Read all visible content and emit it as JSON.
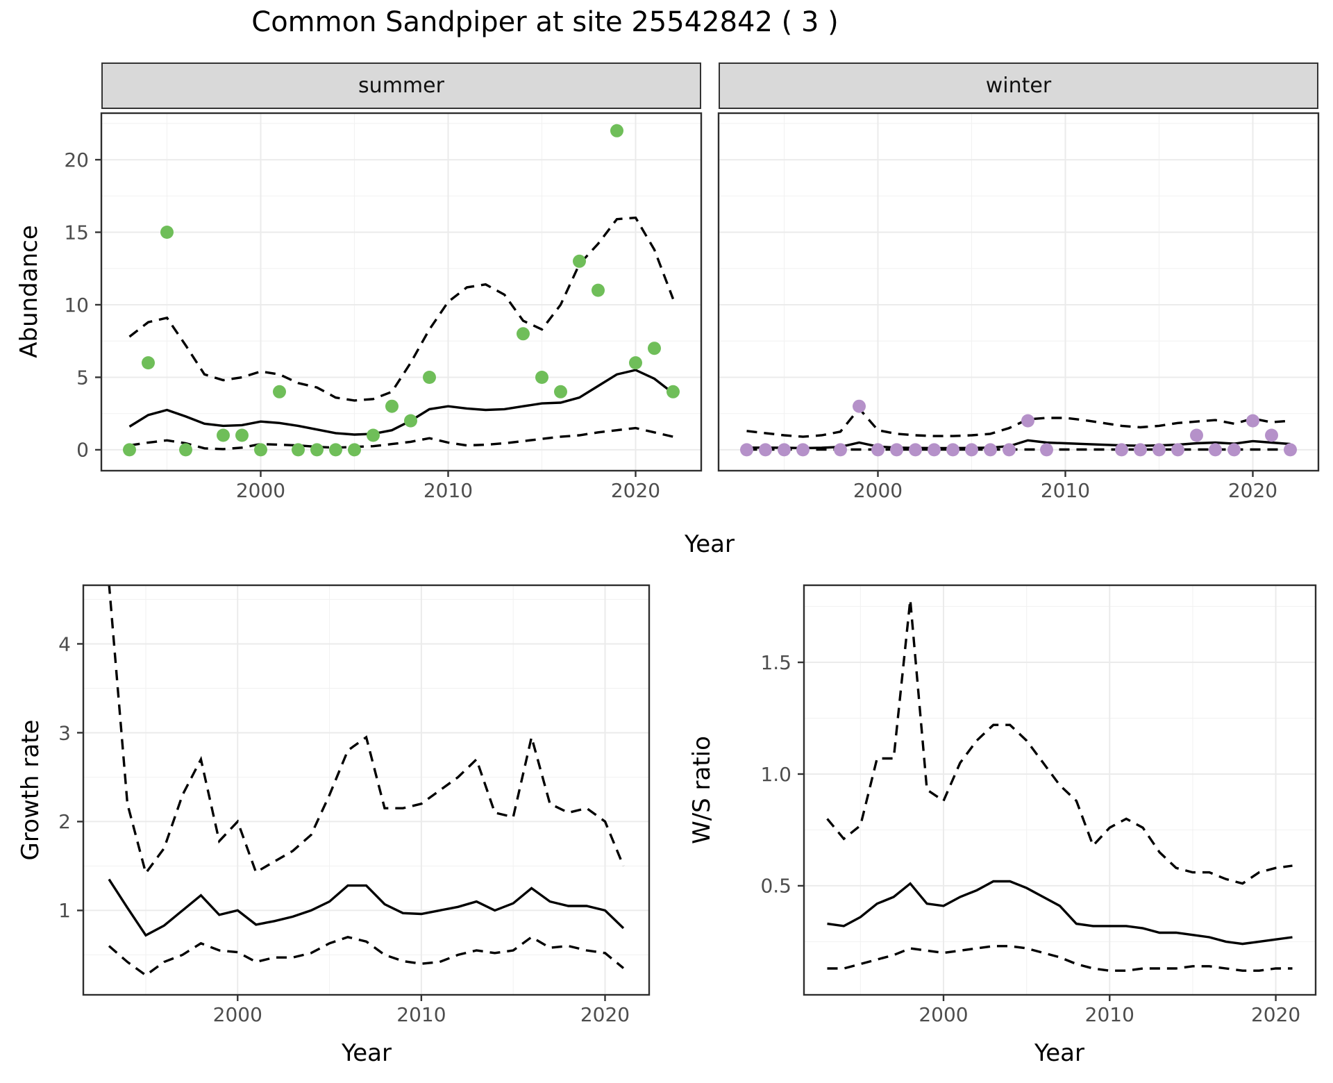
{
  "title": "Common Sandpiper at site 25542842 ( 3 )",
  "colors": {
    "summer_point": "#6FBE59",
    "winter_point": "#B591C9",
    "line": "#000000",
    "strip_bg": "#D9D9D9",
    "panel_border": "#2E2E2E",
    "grid_major": "#EBEBEB",
    "grid_minor": "#F2F2F2",
    "tick_text": "#4D4D4D"
  },
  "chart_data": [
    {
      "type": "scatter",
      "facet": "summer",
      "xlabel": "Year",
      "ylabel": "Abundance",
      "xlim": [
        1991.5,
        2023.5
      ],
      "ylim": [
        -1.44,
        23.21
      ],
      "xticks": [
        2000,
        2010,
        2020
      ],
      "xtick_labels": [
        "2000",
        "2010",
        "2020"
      ],
      "yticks": [
        0,
        5,
        10,
        15,
        20
      ],
      "ytick_labels": [
        "0",
        "5",
        "10",
        "15",
        "20"
      ],
      "xminor": [
        1995,
        2005,
        2015
      ],
      "yminor": [
        2.5,
        7.5,
        12.5,
        17.5,
        22.5
      ],
      "points": {
        "x": [
          1993,
          1994,
          1995,
          1996,
          1998,
          1999,
          2000,
          2001,
          2002,
          2003,
          2004,
          2005,
          2006,
          2007,
          2008,
          2009,
          2014,
          2015,
          2016,
          2017,
          2018,
          2019,
          2020,
          2021,
          2022
        ],
        "y": [
          0,
          6,
          15,
          0,
          1,
          1,
          0,
          4,
          0,
          0,
          0,
          0,
          1,
          3,
          2,
          5,
          8,
          5,
          4,
          13,
          11,
          22,
          6,
          7,
          4
        ]
      },
      "series": [
        {
          "name": "fit",
          "style": "solid",
          "x": [
            1993,
            1994,
            1995,
            1996,
            1997,
            1998,
            1999,
            2000,
            2001,
            2002,
            2003,
            2004,
            2005,
            2006,
            2007,
            2008,
            2009,
            2010,
            2011,
            2012,
            2013,
            2014,
            2015,
            2016,
            2017,
            2018,
            2019,
            2020,
            2021,
            2022
          ],
          "y": [
            1.6,
            2.4,
            2.75,
            2.3,
            1.8,
            1.65,
            1.7,
            1.95,
            1.85,
            1.65,
            1.4,
            1.15,
            1.05,
            1.1,
            1.35,
            2.0,
            2.8,
            3.0,
            2.85,
            2.75,
            2.8,
            3.0,
            3.2,
            3.25,
            3.6,
            4.4,
            5.2,
            5.5,
            4.9,
            3.9
          ]
        },
        {
          "name": "upper_ci",
          "style": "dashed",
          "x": [
            1993,
            1994,
            1995,
            1996,
            1997,
            1998,
            1999,
            2000,
            2001,
            2002,
            2003,
            2004,
            2005,
            2006,
            2007,
            2008,
            2009,
            2010,
            2011,
            2012,
            2013,
            2014,
            2015,
            2016,
            2017,
            2018,
            2019,
            2020,
            2021,
            2022
          ],
          "y": [
            7.8,
            8.8,
            9.1,
            7.2,
            5.2,
            4.8,
            5.0,
            5.4,
            5.2,
            4.6,
            4.3,
            3.6,
            3.4,
            3.5,
            4.0,
            6.0,
            8.3,
            10.2,
            11.2,
            11.4,
            10.7,
            8.9,
            8.3,
            10.0,
            12.8,
            14.2,
            15.9,
            16.0,
            13.8,
            10.4
          ]
        },
        {
          "name": "lower_ci",
          "style": "dashed",
          "x": [
            1993,
            1994,
            1995,
            1996,
            1997,
            1998,
            1999,
            2000,
            2001,
            2002,
            2003,
            2004,
            2005,
            2006,
            2007,
            2008,
            2009,
            2010,
            2011,
            2012,
            2013,
            2014,
            2015,
            2016,
            2017,
            2018,
            2019,
            2020,
            2021,
            2022
          ],
          "y": [
            0.3,
            0.5,
            0.65,
            0.45,
            0.1,
            0.05,
            0.15,
            0.4,
            0.35,
            0.3,
            0.2,
            0.15,
            0.2,
            0.25,
            0.4,
            0.55,
            0.8,
            0.5,
            0.3,
            0.35,
            0.45,
            0.6,
            0.75,
            0.9,
            1.0,
            1.2,
            1.35,
            1.5,
            1.2,
            0.9
          ]
        }
      ]
    },
    {
      "type": "scatter",
      "facet": "winter",
      "xlabel": "Year",
      "ylabel": "Abundance",
      "xlim": [
        1991.5,
        2023.5
      ],
      "ylim": [
        -1.44,
        23.21
      ],
      "xticks": [
        2000,
        2010,
        2020
      ],
      "xtick_labels": [
        "2000",
        "2010",
        "2020"
      ],
      "yticks": [
        0,
        5,
        10,
        15,
        20
      ],
      "ytick_labels": [
        "0",
        "5",
        "10",
        "15",
        "20"
      ],
      "xminor": [
        1995,
        2005,
        2015
      ],
      "yminor": [
        2.5,
        7.5,
        12.5,
        17.5,
        22.5
      ],
      "points": {
        "x": [
          1993,
          1994,
          1995,
          1996,
          1998,
          1999,
          2000,
          2001,
          2002,
          2003,
          2004,
          2005,
          2006,
          2007,
          2008,
          2009,
          2013,
          2014,
          2015,
          2016,
          2017,
          2018,
          2019,
          2020,
          2021,
          2022
        ],
        "y": [
          0,
          0,
          0,
          0,
          0,
          3,
          0,
          0,
          0,
          0,
          0,
          0,
          0,
          0,
          2,
          0,
          0,
          0,
          0,
          0,
          1,
          0,
          0,
          2,
          1,
          0
        ]
      },
      "series": [
        {
          "name": "fit",
          "style": "solid",
          "x": [
            1993,
            1994,
            1995,
            1996,
            1997,
            1998,
            1999,
            2000,
            2001,
            2002,
            2003,
            2004,
            2005,
            2006,
            2007,
            2008,
            2009,
            2010,
            2011,
            2012,
            2013,
            2014,
            2015,
            2016,
            2017,
            2018,
            2019,
            2020,
            2021,
            2022
          ],
          "y": [
            0.15,
            0.15,
            0.14,
            0.12,
            0.14,
            0.2,
            0.5,
            0.22,
            0.15,
            0.13,
            0.12,
            0.12,
            0.13,
            0.15,
            0.25,
            0.65,
            0.5,
            0.45,
            0.4,
            0.35,
            0.3,
            0.28,
            0.3,
            0.35,
            0.45,
            0.5,
            0.42,
            0.6,
            0.5,
            0.4
          ]
        },
        {
          "name": "upper_ci",
          "style": "dashed",
          "x": [
            1993,
            1994,
            1995,
            1996,
            1997,
            1998,
            1999,
            2000,
            2001,
            2002,
            2003,
            2004,
            2005,
            2006,
            2007,
            2008,
            2009,
            2010,
            2011,
            2012,
            2013,
            2014,
            2015,
            2016,
            2017,
            2018,
            2019,
            2020,
            2021,
            2022
          ],
          "y": [
            1.3,
            1.15,
            1.0,
            0.9,
            1.0,
            1.25,
            2.85,
            1.35,
            1.1,
            1.0,
            0.95,
            0.95,
            1.0,
            1.1,
            1.5,
            2.1,
            2.2,
            2.2,
            2.05,
            1.85,
            1.65,
            1.55,
            1.65,
            1.85,
            1.95,
            2.05,
            1.8,
            2.15,
            1.9,
            2.0
          ]
        },
        {
          "name": "lower_ci",
          "style": "dashed",
          "x": [
            1993,
            1994,
            1995,
            1996,
            1997,
            1998,
            1999,
            2000,
            2001,
            2002,
            2003,
            2004,
            2005,
            2006,
            2007,
            2008,
            2009,
            2010,
            2011,
            2012,
            2013,
            2014,
            2015,
            2016,
            2017,
            2018,
            2019,
            2020,
            2021,
            2022
          ],
          "y": [
            0.02,
            0.02,
            0.02,
            0.02,
            0.02,
            0.02,
            0.02,
            0.02,
            0.02,
            0.02,
            0.02,
            0.02,
            0.02,
            0.02,
            0.02,
            0.02,
            0.02,
            0.02,
            0.02,
            0.02,
            0.02,
            0.02,
            0.02,
            0.02,
            0.02,
            0.02,
            0.02,
            0.02,
            0.02,
            0.02
          ]
        }
      ]
    },
    {
      "type": "line",
      "facet": "",
      "xlabel": "Year",
      "ylabel": "Growth rate",
      "xlim": [
        1991.6,
        2022.4
      ],
      "ylim": [
        0.05,
        4.66
      ],
      "xticks": [
        2000,
        2010,
        2020
      ],
      "xtick_labels": [
        "2000",
        "2010",
        "2020"
      ],
      "yticks": [
        1,
        2,
        3,
        4
      ],
      "ytick_labels": [
        "1",
        "2",
        "3",
        "4"
      ],
      "xminor": [
        1995,
        2005,
        2015
      ],
      "yminor": [
        0.5,
        1.5,
        2.5,
        3.5,
        4.5
      ],
      "series": [
        {
          "name": "fit",
          "style": "solid",
          "x": [
            1993,
            1994,
            1995,
            1996,
            1997,
            1998,
            1999,
            2000,
            2001,
            2002,
            2003,
            2004,
            2005,
            2006,
            2007,
            2008,
            2009,
            2010,
            2011,
            2012,
            2013,
            2014,
            2015,
            2016,
            2017,
            2018,
            2019,
            2020,
            2021
          ],
          "y": [
            1.35,
            1.03,
            0.72,
            0.83,
            1.0,
            1.17,
            0.95,
            1.0,
            0.84,
            0.88,
            0.93,
            1.0,
            1.1,
            1.28,
            1.28,
            1.07,
            0.97,
            0.96,
            1.0,
            1.04,
            1.1,
            1.0,
            1.08,
            1.25,
            1.1,
            1.05,
            1.05,
            1.0,
            0.8
          ]
        },
        {
          "name": "upper_ci",
          "style": "dashed",
          "x": [
            1993,
            1994,
            1995,
            1996,
            1997,
            1998,
            1999,
            2000,
            2001,
            2002,
            2003,
            2004,
            2005,
            2006,
            2007,
            2008,
            2009,
            2010,
            2011,
            2012,
            2013,
            2014,
            2015,
            2016,
            2017,
            2018,
            2019,
            2020,
            2021
          ],
          "y": [
            4.68,
            2.2,
            1.42,
            1.7,
            2.3,
            2.7,
            1.78,
            2.0,
            1.43,
            1.55,
            1.67,
            1.85,
            2.3,
            2.8,
            2.95,
            2.15,
            2.15,
            2.2,
            2.35,
            2.5,
            2.7,
            2.1,
            2.05,
            2.95,
            2.2,
            2.1,
            2.15,
            2.0,
            1.5
          ]
        },
        {
          "name": "lower_ci",
          "style": "dashed",
          "x": [
            1993,
            1994,
            1995,
            1996,
            1997,
            1998,
            1999,
            2000,
            2001,
            2002,
            2003,
            2004,
            2005,
            2006,
            2007,
            2008,
            2009,
            2010,
            2011,
            2012,
            2013,
            2014,
            2015,
            2016,
            2017,
            2018,
            2019,
            2020,
            2021
          ],
          "y": [
            0.6,
            0.42,
            0.27,
            0.42,
            0.5,
            0.63,
            0.55,
            0.53,
            0.42,
            0.47,
            0.47,
            0.52,
            0.63,
            0.7,
            0.65,
            0.5,
            0.43,
            0.4,
            0.42,
            0.5,
            0.55,
            0.52,
            0.55,
            0.7,
            0.58,
            0.6,
            0.55,
            0.52,
            0.35
          ]
        }
      ]
    },
    {
      "type": "line",
      "facet": "",
      "xlabel": "Year",
      "ylabel": "W/S ratio",
      "xlim": [
        1991.6,
        2022.4
      ],
      "ylim": [
        0.012,
        1.845
      ],
      "xticks": [
        2000,
        2010,
        2020
      ],
      "xtick_labels": [
        "2000",
        "2010",
        "2020"
      ],
      "yticks": [
        0.5,
        1.0,
        1.5
      ],
      "ytick_labels": [
        "0.5",
        "1.0",
        "1.5"
      ],
      "xminor": [
        1995,
        2005,
        2015
      ],
      "yminor": [
        0.25,
        0.75,
        1.25,
        1.75
      ],
      "series": [
        {
          "name": "fit",
          "style": "solid",
          "x": [
            1993,
            1994,
            1995,
            1996,
            1997,
            1998,
            1999,
            2000,
            2001,
            2002,
            2003,
            2004,
            2005,
            2006,
            2007,
            2008,
            2009,
            2010,
            2011,
            2012,
            2013,
            2014,
            2015,
            2016,
            2017,
            2018,
            2019,
            2020,
            2021
          ],
          "y": [
            0.33,
            0.32,
            0.36,
            0.42,
            0.45,
            0.51,
            0.42,
            0.41,
            0.45,
            0.48,
            0.52,
            0.52,
            0.49,
            0.45,
            0.41,
            0.33,
            0.32,
            0.32,
            0.32,
            0.31,
            0.29,
            0.29,
            0.28,
            0.27,
            0.25,
            0.24,
            0.25,
            0.26,
            0.27
          ]
        },
        {
          "name": "upper_ci",
          "style": "dashed",
          "x": [
            1993,
            1994,
            1995,
            1996,
            1997,
            1998,
            1999,
            2000,
            2001,
            2002,
            2003,
            2004,
            2005,
            2006,
            2007,
            2008,
            2009,
            2010,
            2011,
            2012,
            2013,
            2014,
            2015,
            2016,
            2017,
            2018,
            2019,
            2020,
            2021
          ],
          "y": [
            0.8,
            0.71,
            0.77,
            1.07,
            1.07,
            1.78,
            0.93,
            0.88,
            1.05,
            1.15,
            1.22,
            1.22,
            1.15,
            1.05,
            0.95,
            0.88,
            0.68,
            0.76,
            0.8,
            0.76,
            0.65,
            0.58,
            0.56,
            0.56,
            0.53,
            0.51,
            0.56,
            0.58,
            0.59
          ]
        },
        {
          "name": "lower_ci",
          "style": "dashed",
          "x": [
            1993,
            1994,
            1995,
            1996,
            1997,
            1998,
            1999,
            2000,
            2001,
            2002,
            2003,
            2004,
            2005,
            2006,
            2007,
            2008,
            2009,
            2010,
            2011,
            2012,
            2013,
            2014,
            2015,
            2016,
            2017,
            2018,
            2019,
            2020,
            2021
          ],
          "y": [
            0.13,
            0.13,
            0.15,
            0.17,
            0.19,
            0.22,
            0.21,
            0.2,
            0.21,
            0.22,
            0.23,
            0.23,
            0.22,
            0.2,
            0.18,
            0.15,
            0.13,
            0.12,
            0.12,
            0.13,
            0.13,
            0.13,
            0.14,
            0.14,
            0.13,
            0.12,
            0.12,
            0.13,
            0.13
          ]
        }
      ]
    }
  ]
}
